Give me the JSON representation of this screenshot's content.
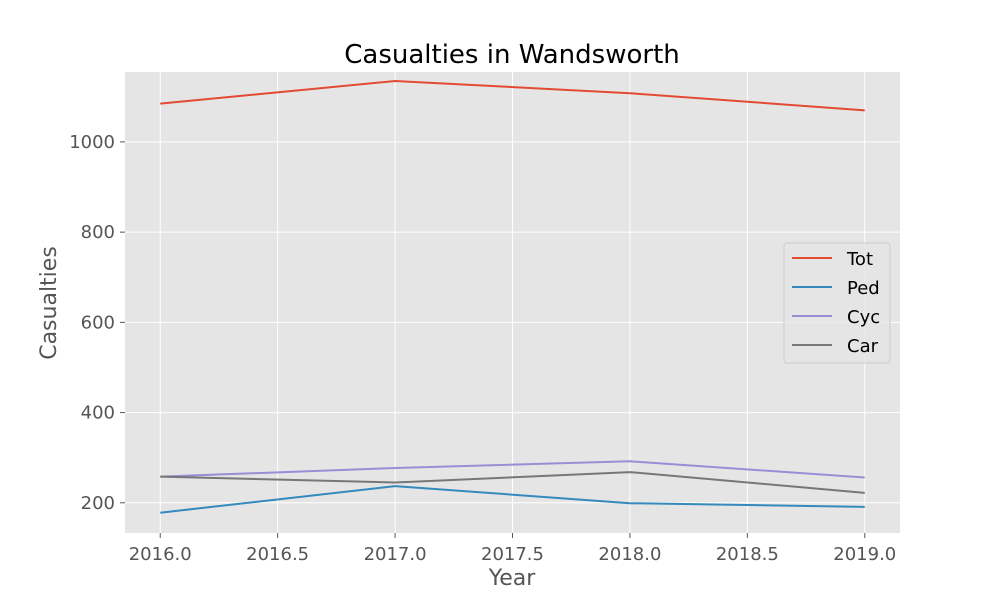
{
  "chart_data": {
    "type": "line",
    "title": "Casualties in Wandsworth",
    "xlabel": "Year",
    "ylabel": "Casualties",
    "x": [
      2016,
      2017,
      2018,
      2019
    ],
    "xlim": [
      2015.85,
      2019.15
    ],
    "ylim": [
      133,
      1155
    ],
    "x_ticks": [
      "2016.0",
      "2016.5",
      "2017.0",
      "2017.5",
      "2018.0",
      "2018.5",
      "2019.0"
    ],
    "y_ticks": [
      "200",
      "400",
      "600",
      "800",
      "1000"
    ],
    "grid": true,
    "legend_position": "center-right",
    "series": [
      {
        "name": "Tot",
        "color": "#E24A33",
        "values": [
          1085,
          1135,
          1108,
          1070
        ]
      },
      {
        "name": "Ped",
        "color": "#348ABD",
        "values": [
          178,
          237,
          199,
          191
        ]
      },
      {
        "name": "Cyc",
        "color": "#988ED5",
        "values": [
          258,
          277,
          292,
          256
        ]
      },
      {
        "name": "Car",
        "color": "#777777",
        "values": [
          258,
          245,
          268,
          222
        ]
      }
    ]
  }
}
